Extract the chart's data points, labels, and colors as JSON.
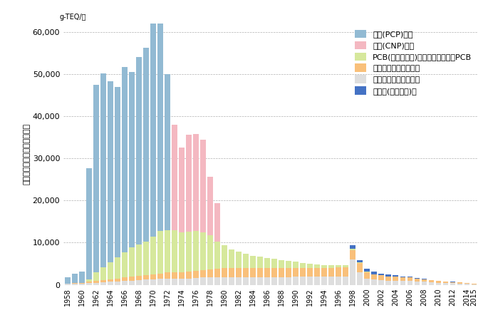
{
  "years": [
    1958,
    1959,
    1960,
    1961,
    1962,
    1963,
    1964,
    1965,
    1966,
    1967,
    1968,
    1969,
    1970,
    1971,
    1972,
    1973,
    1974,
    1975,
    1976,
    1977,
    1978,
    1979,
    1980,
    1981,
    1982,
    1983,
    1984,
    1985,
    1986,
    1987,
    1988,
    1989,
    1990,
    1991,
    1992,
    1993,
    1994,
    1995,
    1996,
    1997,
    1998,
    1999,
    2000,
    2001,
    2002,
    2003,
    2004,
    2005,
    2006,
    2007,
    2008,
    2009,
    2010,
    2011,
    2012,
    2013,
    2014,
    2015
  ],
  "pcp": [
    1500,
    2200,
    2700,
    26500,
    44500,
    46000,
    43000,
    40500,
    44000,
    41500,
    44500,
    46000,
    53000,
    57500,
    37000,
    0,
    0,
    0,
    0,
    0,
    0,
    0,
    0,
    0,
    0,
    0,
    0,
    0,
    0,
    0,
    0,
    0,
    0,
    0,
    0,
    0,
    0,
    0,
    0,
    0,
    0,
    0,
    0,
    0,
    0,
    0,
    0,
    0,
    0,
    0,
    0,
    0,
    0,
    0,
    0,
    0,
    0,
    0
  ],
  "cnp": [
    0,
    0,
    0,
    0,
    0,
    0,
    0,
    0,
    0,
    0,
    0,
    0,
    0,
    0,
    0,
    25000,
    20000,
    23000,
    23000,
    22000,
    14000,
    9000,
    0,
    0,
    0,
    0,
    0,
    0,
    0,
    0,
    0,
    0,
    0,
    0,
    0,
    0,
    0,
    0,
    0,
    0,
    0,
    0,
    0,
    0,
    0,
    0,
    0,
    0,
    0,
    0,
    0,
    0,
    0,
    0,
    0,
    0,
    0,
    0
  ],
  "pcb": [
    0,
    0,
    0,
    500,
    2000,
    3000,
    4000,
    5000,
    6000,
    7000,
    7500,
    8000,
    9000,
    10000,
    10000,
    10000,
    9500,
    9500,
    9500,
    9000,
    8000,
    6500,
    5500,
    4500,
    4000,
    3500,
    3000,
    2800,
    2500,
    2200,
    2000,
    1800,
    1500,
    1200,
    1000,
    800,
    700,
    600,
    500,
    400,
    300,
    200,
    100,
    50,
    0,
    0,
    0,
    0,
    0,
    0,
    0,
    0,
    0,
    0,
    0,
    0,
    0,
    0
  ],
  "industrial": [
    100,
    150,
    200,
    300,
    400,
    500,
    600,
    700,
    800,
    900,
    1000,
    1100,
    1200,
    1300,
    1400,
    1400,
    1500,
    1600,
    1700,
    1800,
    1900,
    2000,
    2100,
    2100,
    2100,
    2100,
    2100,
    2100,
    2100,
    2100,
    2100,
    2100,
    2100,
    2100,
    2100,
    2100,
    2100,
    2100,
    2100,
    2200,
    2200,
    2200,
    1500,
    1200,
    1100,
    1000,
    900,
    800,
    800,
    700,
    600,
    500,
    400,
    350,
    300,
    250,
    200,
    150
  ],
  "municipal": [
    200,
    250,
    300,
    400,
    500,
    600,
    700,
    800,
    900,
    1000,
    1100,
    1200,
    1300,
    1400,
    1500,
    1500,
    1500,
    1500,
    1600,
    1700,
    1800,
    1800,
    1800,
    1800,
    1800,
    1800,
    1800,
    1800,
    1800,
    1800,
    1800,
    1800,
    1900,
    1900,
    1900,
    1900,
    1900,
    1900,
    2000,
    2000,
    6000,
    3000,
    1500,
    1200,
    1100,
    1000,
    1000,
    900,
    900,
    800,
    700,
    600,
    500,
    400,
    350,
    300,
    200,
    150
  ],
  "other": [
    0,
    0,
    0,
    0,
    0,
    0,
    0,
    0,
    0,
    0,
    0,
    0,
    0,
    0,
    0,
    0,
    0,
    0,
    0,
    0,
    0,
    0,
    0,
    0,
    0,
    0,
    0,
    0,
    0,
    0,
    0,
    0,
    0,
    0,
    0,
    0,
    0,
    0,
    0,
    0,
    900,
    400,
    700,
    600,
    500,
    400,
    300,
    250,
    200,
    150,
    100,
    80,
    60,
    50,
    30,
    20,
    10,
    0
  ],
  "colors": {
    "pcp": "#92bad3",
    "cnp": "#f4b8c1",
    "pcb": "#d6e89c",
    "industrial": "#f9c07a",
    "municipal": "#dedede",
    "other": "#4472c4"
  },
  "legend_labels": {
    "pcp": "農薬(PCP)由来",
    "cnp": "農薬(CNP)由来",
    "pcb": "PCB(絶縁油など)由来のコプラナーPCB",
    "industrial": "産業廃棄物焼却炉由来",
    "municipal": "一般廃棄物焼却炉由来",
    "other": "その他(産業系等)計"
  },
  "ylabel": "ダイオキシン類の環境排出量",
  "yunits": "g-TEQ/年",
  "ylim": [
    0,
    62000
  ],
  "yticks": [
    0,
    10000,
    20000,
    30000,
    40000,
    50000,
    60000
  ],
  "background": "#ffffff",
  "grid_color": "#b0b0b0",
  "tick_years": [
    1958,
    1960,
    1962,
    1964,
    1966,
    1968,
    1970,
    1972,
    1974,
    1976,
    1978,
    1980,
    1982,
    1984,
    1986,
    1988,
    1990,
    1992,
    1994,
    1996,
    1998,
    2000,
    2002,
    2004,
    2006,
    2008,
    2010,
    2012,
    2014,
    2015
  ]
}
